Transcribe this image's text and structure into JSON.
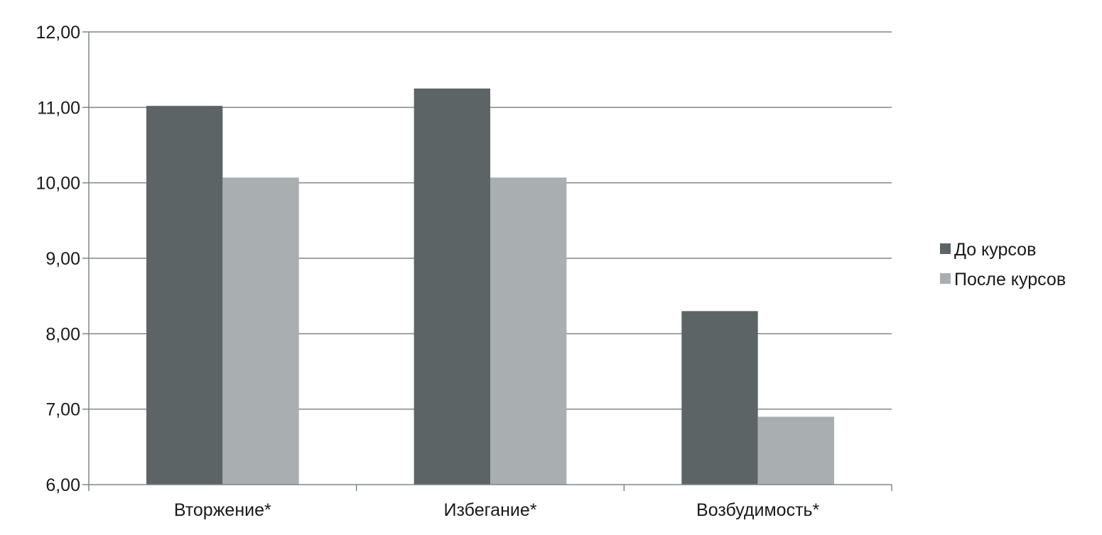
{
  "chart_data": {
    "type": "bar",
    "categories": [
      "Вторжение*",
      "Избегание*",
      "Возбудимость*"
    ],
    "series": [
      {
        "name": "До курсов",
        "values": [
          11.02,
          11.25,
          8.3
        ],
        "color": "#5c6466"
      },
      {
        "name": "После курсов",
        "values": [
          10.07,
          10.07,
          6.9
        ],
        "color": "#a9aeb1"
      }
    ],
    "ylim": [
      6,
      12
    ],
    "yticks": [
      "6,00",
      "7,00",
      "8,00",
      "9,00",
      "10,00",
      "11,00",
      "12,00"
    ],
    "grid": true,
    "legend_position": "right",
    "axis_color": "#7f8588"
  }
}
